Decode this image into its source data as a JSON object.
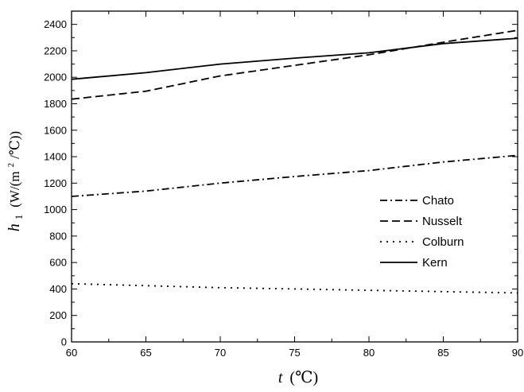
{
  "chart_data": {
    "type": "line",
    "title": "",
    "xlabel": {
      "symbol": "t",
      "unit": "(℃)"
    },
    "ylabel": {
      "symbol": "h",
      "subscript": "1",
      "unit_prefix": "(W/(m",
      "unit_sup": "2",
      "unit_suffix": "/℃))"
    },
    "xlim": [
      60,
      90
    ],
    "ylim": [
      0,
      2500
    ],
    "xticks": [
      60,
      65,
      70,
      75,
      80,
      85,
      90
    ],
    "yticks": [
      0,
      200,
      400,
      600,
      800,
      1000,
      1200,
      1400,
      1600,
      1800,
      2000,
      2200,
      2400
    ],
    "grid": false,
    "legend_position": "right-middle",
    "series": [
      {
        "name": "Chato",
        "dash": "dashdot",
        "x": [
          60,
          65,
          70,
          75,
          80,
          85,
          90
        ],
        "y": [
          1100,
          1140,
          1200,
          1250,
          1295,
          1360,
          1410
        ]
      },
      {
        "name": "Nusselt",
        "dash": "dash",
        "x": [
          60,
          65,
          70,
          75,
          80,
          85,
          90
        ],
        "y": [
          1835,
          1895,
          2010,
          2090,
          2170,
          2265,
          2355
        ]
      },
      {
        "name": "Colburn",
        "dash": "dot",
        "x": [
          60,
          65,
          70,
          75,
          80,
          85,
          90
        ],
        "y": [
          440,
          425,
          410,
          400,
          390,
          380,
          370
        ]
      },
      {
        "name": "Kern",
        "dash": "solid",
        "x": [
          60,
          65,
          70,
          75,
          80,
          85,
          90
        ],
        "y": [
          1985,
          2035,
          2100,
          2145,
          2185,
          2255,
          2295
        ]
      }
    ]
  }
}
